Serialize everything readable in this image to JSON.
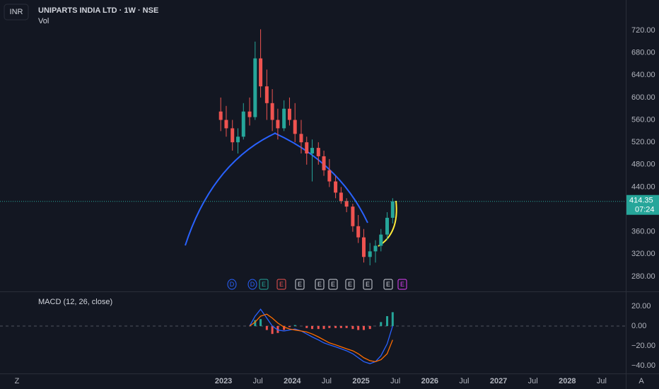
{
  "chart_data": [
    {
      "type": "candlestick",
      "title": "UNIPARTS INDIA LTD · 1W · NSE",
      "indicator": "Vol",
      "currency": "INR",
      "x": [
        2022.96,
        2023.04,
        2023.13,
        2023.21,
        2023.29,
        2023.38,
        2023.46,
        2023.54,
        2023.63,
        2023.71,
        2023.79,
        2023.88,
        2023.96,
        2024.04,
        2024.13,
        2024.21,
        2024.29,
        2024.38,
        2024.46,
        2024.54,
        2024.63,
        2024.71,
        2024.79,
        2024.88,
        2024.96,
        2025.04,
        2025.13,
        2025.21,
        2025.29,
        2025.38,
        2025.46
      ],
      "open": [
        575,
        560,
        545,
        520,
        530,
        575,
        565,
        670,
        620,
        590,
        560,
        545,
        580,
        560,
        535,
        520,
        500,
        510,
        495,
        470,
        450,
        430,
        415,
        405,
        370,
        350,
        315,
        325,
        335,
        355,
        385
      ],
      "high": [
        600,
        585,
        560,
        545,
        590,
        600,
        700,
        722,
        650,
        615,
        580,
        595,
        600,
        590,
        560,
        530,
        525,
        520,
        505,
        490,
        460,
        440,
        420,
        410,
        390,
        365,
        340,
        345,
        365,
        395,
        420
      ],
      "low": [
        540,
        530,
        505,
        500,
        525,
        550,
        560,
        600,
        560,
        540,
        525,
        540,
        550,
        520,
        500,
        480,
        450,
        480,
        460,
        440,
        420,
        410,
        395,
        360,
        340,
        305,
        300,
        305,
        325,
        345,
        375
      ],
      "close": [
        560,
        545,
        520,
        530,
        575,
        565,
        670,
        620,
        590,
        560,
        545,
        580,
        560,
        535,
        520,
        500,
        510,
        495,
        470,
        450,
        430,
        415,
        405,
        370,
        350,
        315,
        325,
        335,
        355,
        385,
        414.35
      ],
      "up_color": "#26a69a",
      "down_color": "#ef5350",
      "last_price": 414.35,
      "countdown": "07:24",
      "events": [
        "D",
        "D",
        "E",
        "E",
        "E",
        "E",
        "E",
        "E",
        "E",
        "E",
        "E"
      ],
      "event_colors": [
        "#2962ff",
        "#2962ff",
        "#26a69a",
        "#ef5350",
        "#d1d4dc",
        "#d1d4dc",
        "#d1d4dc",
        "#d1d4dc",
        "#d1d4dc",
        "#d1d4dc",
        "#e040fb"
      ],
      "xlim": [
        2019.75,
        2028.85
      ],
      "ylim": [
        253.4,
        774.4
      ],
      "yticks": [
        {
          "value": 720,
          "label": "720.00"
        },
        {
          "value": 680,
          "label": "680.00"
        },
        {
          "value": 640,
          "label": "640.00"
        },
        {
          "value": 600,
          "label": "600.00"
        },
        {
          "value": 560,
          "label": "560.00"
        },
        {
          "value": 520,
          "label": "520.00"
        },
        {
          "value": 480,
          "label": "480.00"
        },
        {
          "value": 440,
          "label": "440.00"
        },
        {
          "value": 360,
          "label": "360.00"
        },
        {
          "value": 320,
          "label": "320.00"
        },
        {
          "value": 280,
          "label": "280.00"
        }
      ],
      "xticks": [
        2023,
        {
          "value": 2023.5,
          "label": "Jul"
        },
        2024,
        {
          "value": 2024.5,
          "label": "Jul"
        },
        2025,
        {
          "value": 2025.5,
          "label": "Jul"
        },
        2026,
        {
          "value": 2026.5,
          "label": "Jul"
        },
        2027,
        {
          "value": 2027.5,
          "label": "Jul"
        },
        2028,
        {
          "value": 2028.5,
          "label": "Jul"
        }
      ]
    },
    {
      "type": "macd",
      "title": "MACD (12, 26, close)",
      "x": [
        2023.38,
        2023.46,
        2023.54,
        2023.63,
        2023.71,
        2023.79,
        2023.88,
        2023.96,
        2024.04,
        2024.13,
        2024.21,
        2024.29,
        2024.38,
        2024.46,
        2024.54,
        2024.63,
        2024.71,
        2024.79,
        2024.88,
        2024.96,
        2025.04,
        2025.13,
        2025.21,
        2025.29,
        2025.38,
        2025.46
      ],
      "histogram": [
        0,
        6,
        7,
        -4,
        -8,
        -7,
        -4,
        -1,
        1,
        0,
        -2,
        -3,
        -3,
        -3,
        -2,
        -2,
        -2,
        -2,
        -3,
        -4,
        -4,
        -3,
        0,
        4,
        10,
        14
      ],
      "series": [
        {
          "color": "#2962ff",
          "values": [
            0,
            10,
            17,
            8,
            0,
            -4,
            -5,
            -4,
            -3,
            -5,
            -8,
            -11,
            -14,
            -17,
            -19,
            -21,
            -23,
            -25,
            -28,
            -32,
            -36,
            -38,
            -36,
            -30,
            -18,
            0
          ]
        },
        {
          "color": "#ff6d00",
          "values": [
            0,
            4,
            10,
            12,
            8,
            3,
            -1,
            -3,
            -4,
            -5,
            -6,
            -8,
            -11,
            -14,
            -17,
            -19,
            -21,
            -23,
            -25,
            -28,
            -32,
            -35,
            -36,
            -34,
            -28,
            -14
          ]
        }
      ],
      "ylim": [
        -47.9,
        35
      ],
      "yticks": [
        {
          "value": 20,
          "label": "20.00"
        },
        {
          "value": 0,
          "label": "0.00"
        },
        {
          "value": -20,
          "label": "−20.00"
        },
        {
          "value": -40,
          "label": "−40.00"
        }
      ]
    }
  ]
}
